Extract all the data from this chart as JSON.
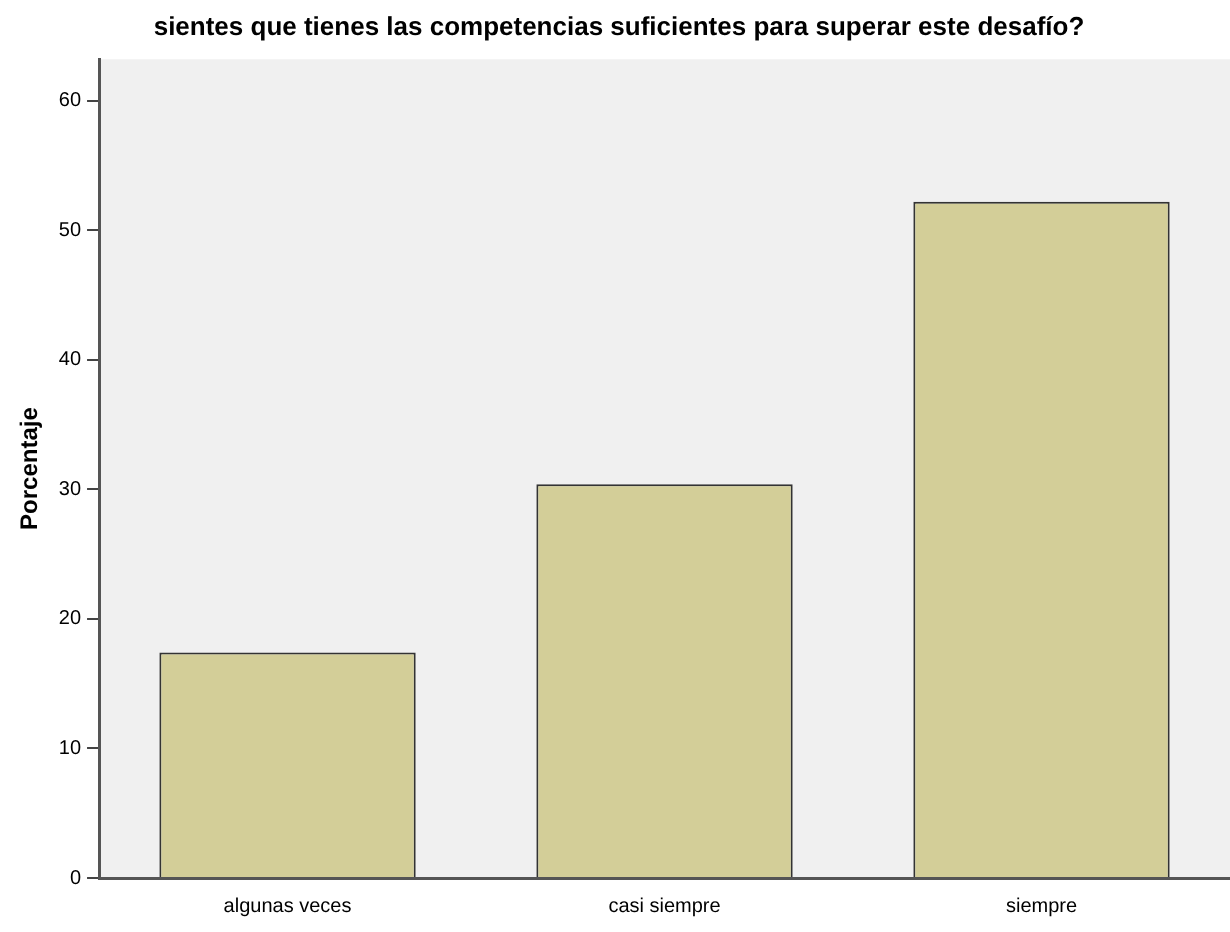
{
  "chart_data": {
    "type": "bar",
    "title": "sientes que tienes las competencias suficientes para superar este desafío?",
    "ylabel": "Porcentaje",
    "categories": [
      "algunas veces",
      "casi siempre",
      "siempre"
    ],
    "values": [
      17.4,
      30.4,
      52.2
    ],
    "color": "#d3ce98",
    "ylim": [
      0,
      63.2
    ],
    "yticks": [
      0,
      10,
      20,
      30,
      40,
      50,
      60
    ],
    "grid": false,
    "legend": false
  }
}
